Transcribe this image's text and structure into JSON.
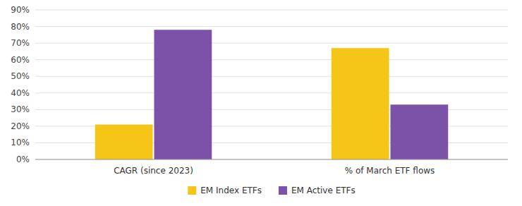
{
  "chart_data": {
    "type": "bar",
    "categories": [
      "CAGR (since 2023)",
      "% of March ETF flows"
    ],
    "series": [
      {
        "name": "EM Index ETFs",
        "color": "#F5C518",
        "values": [
          0.21,
          0.67
        ]
      },
      {
        "name": "EM Active ETFs",
        "color": "#7B52A8",
        "values": [
          0.78,
          0.33
        ]
      }
    ],
    "ylim": [
      0,
      0.9
    ],
    "yticks": [
      {
        "value": 0.0,
        "label": "0%"
      },
      {
        "value": 0.1,
        "label": "10%"
      },
      {
        "value": 0.2,
        "label": "20%"
      },
      {
        "value": 0.3,
        "label": "30%"
      },
      {
        "value": 0.4,
        "label": "40%"
      },
      {
        "value": 0.5,
        "label": "50%"
      },
      {
        "value": 0.6,
        "label": "60%"
      },
      {
        "value": 0.7,
        "label": "70%"
      },
      {
        "value": 0.8,
        "label": "80%"
      },
      {
        "value": 0.9,
        "label": "90%"
      }
    ],
    "grid": true,
    "legend": "bottom"
  }
}
